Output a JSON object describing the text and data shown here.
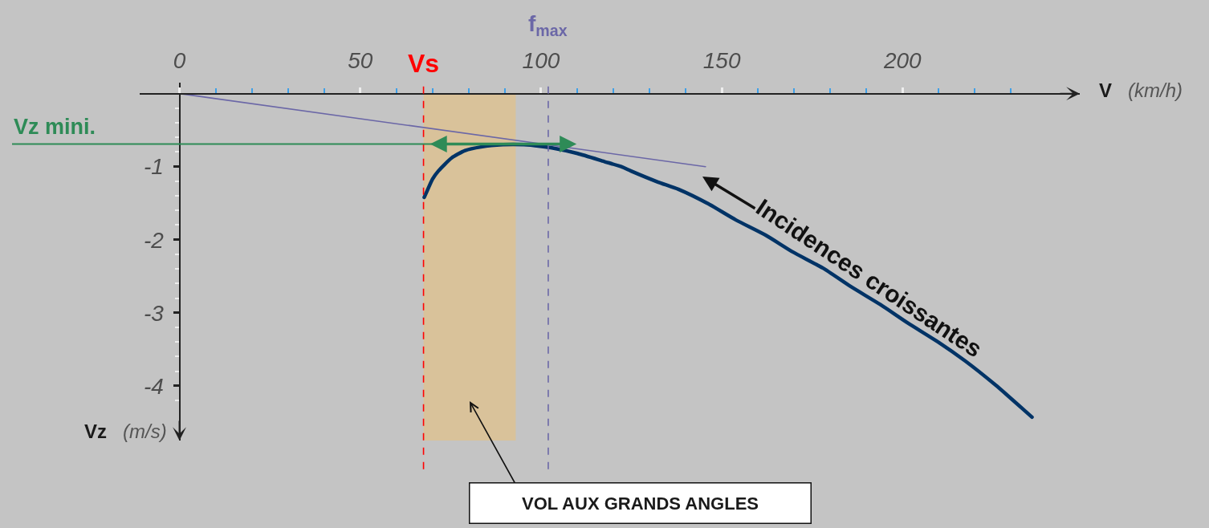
{
  "chart_data": {
    "type": "line",
    "xlabel": "V (km/h)",
    "ylabel": "Vz (m/s)",
    "xlim": [
      -11,
      249
    ],
    "ylim": [
      -4.75,
      0.15
    ],
    "xticks": [
      0,
      {
        "value": 10,
        "label": null
      },
      {
        "value": 20,
        "label": null
      },
      {
        "value": 30,
        "label": null
      },
      {
        "value": 40,
        "label": null
      },
      50,
      {
        "value": 60,
        "label": null
      },
      {
        "value": 70,
        "label": null
      },
      {
        "value": 80,
        "label": null
      },
      {
        "value": 90,
        "label": null
      },
      100,
      {
        "value": 110,
        "label": null
      },
      {
        "value": 120,
        "label": null
      },
      {
        "value": 130,
        "label": null
      },
      {
        "value": 140,
        "label": null
      },
      150,
      {
        "value": 160,
        "label": null
      },
      {
        "value": 170,
        "label": null
      },
      {
        "value": 180,
        "label": null
      },
      {
        "value": 190,
        "label": null
      },
      200,
      {
        "value": 210,
        "label": null
      },
      {
        "value": 220,
        "label": null
      },
      {
        "value": 230,
        "label": null
      }
    ],
    "yticks": [
      {
        "value": -0.2,
        "label": null
      },
      {
        "value": -0.4,
        "label": null
      },
      {
        "value": -0.6,
        "label": null
      },
      {
        "value": -0.8,
        "label": null
      },
      -1,
      {
        "value": -1.2,
        "label": null
      },
      {
        "value": -1.4,
        "label": null
      },
      {
        "value": -1.6,
        "label": null
      },
      {
        "value": -1.8,
        "label": null
      },
      -2,
      {
        "value": -2.2,
        "label": null
      },
      {
        "value": -2.4,
        "label": null
      },
      {
        "value": -2.6,
        "label": null
      },
      {
        "value": -2.8,
        "label": null
      },
      -3,
      {
        "value": -3.2,
        "label": null
      },
      {
        "value": -3.4,
        "label": null
      },
      {
        "value": -3.6,
        "label": null
      },
      {
        "value": -3.8,
        "label": null
      },
      -4,
      {
        "value": -4.2,
        "label": null
      }
    ],
    "series": [
      {
        "color": "#003366",
        "x": [
          67.7,
          68.6,
          70.0,
          71.6,
          75.3,
          79.0,
          83.4,
          89.4,
          95.3,
          99.7,
          102.7,
          110.1,
          117.5,
          122.2,
          124.9,
          132.3,
          138.0,
          146.3,
          153.9,
          162.2,
          169.7,
          178.0,
          185.6,
          193.9,
          201.4,
          209.8,
          217.3,
          225.7,
          229.2,
          235.8
        ],
        "values": [
          -1.42,
          -1.32,
          -1.17,
          -1.06,
          -0.88,
          -0.78,
          -0.73,
          -0.7,
          -0.7,
          -0.72,
          -0.74,
          -0.82,
          -0.93,
          -1.0,
          -1.06,
          -1.21,
          -1.31,
          -1.51,
          -1.73,
          -1.94,
          -2.17,
          -2.39,
          -2.64,
          -2.89,
          -3.14,
          -3.4,
          -3.66,
          -3.99,
          -4.14,
          -4.43
        ]
      },
      {
        "color": "#6b67a7",
        "x": [
          0,
          145.5
        ],
        "values": [
          0,
          -1.0
        ]
      }
    ],
    "ref_lines": [
      {
        "axis": "x",
        "value": 67.5,
        "label": "Vs",
        "color": "#ff0000",
        "line_style": "dashed"
      },
      {
        "axis": "x",
        "value": 102,
        "label": "f$_{max}$",
        "color": "#6b67a7",
        "line_style": "dashed"
      },
      {
        "axis": "y",
        "value": -0.69,
        "label": "Vz mini.",
        "color": "#2e8b57",
        "line_style": "solid"
      }
    ],
    "bands": [
      {
        "axis": "x",
        "from": 67.5,
        "to": 93,
        "label": "VOL AUX GRANDS ANGLES",
        "color": "#d9c29a"
      }
    ],
    "annotations": [
      "Incidences croissantes"
    ]
  }
}
